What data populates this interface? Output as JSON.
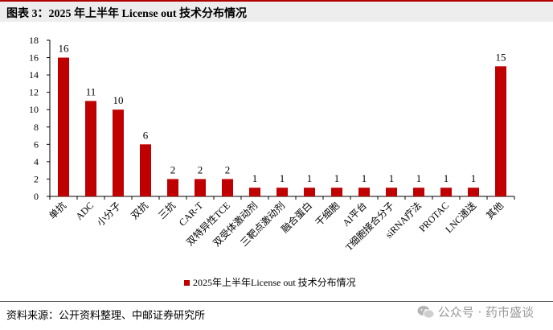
{
  "header": {
    "title": "图表 3：2025 年上半年 License out 技术分布情况"
  },
  "chart_data": {
    "type": "bar",
    "title": "",
    "xlabel": "",
    "ylabel": "",
    "ylim": [
      0,
      18
    ],
    "yticks": [
      0,
      2,
      4,
      6,
      8,
      10,
      12,
      14,
      16,
      18
    ],
    "grid": false,
    "legend_position": "bottom-center",
    "categories": [
      "单抗",
      "ADC",
      "小分子",
      "双抗",
      "三抗",
      "CAR-T",
      "双特异性TCE",
      "双受体激动剂",
      "三靶点激动剂",
      "融合蛋白",
      "干细胞",
      "AI平台",
      "T细胞接合分子",
      "siRNA疗法",
      "PROTAC",
      "LNC递送",
      "其他"
    ],
    "series": [
      {
        "name": "2025年上半年License out 技术分布情况",
        "color": "#c00000",
        "values": [
          16,
          11,
          10,
          6,
          2,
          2,
          2,
          1,
          1,
          1,
          1,
          1,
          1,
          1,
          1,
          1,
          15
        ]
      }
    ]
  },
  "footer": {
    "source": "资料来源：公开资料整理、中邮证券研究所",
    "watermark": "公众号 · 药市盛谈",
    "watermark_icon": "wechat-icon"
  }
}
